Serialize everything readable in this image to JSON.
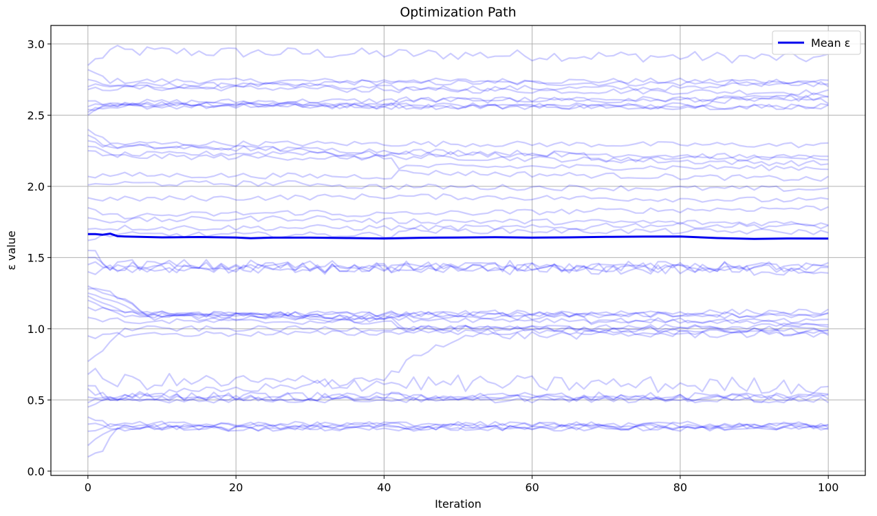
{
  "chart_data": {
    "type": "line",
    "title": "Optimization Path",
    "xlabel": "Iteration",
    "ylabel": "ε value",
    "xlim": [
      -5,
      105
    ],
    "ylim": [
      -0.03,
      3.13
    ],
    "xticks": [
      0,
      20,
      40,
      60,
      80,
      100
    ],
    "yticks": [
      0.0,
      0.5,
      1.0,
      1.5,
      2.0,
      2.5,
      3.0
    ],
    "grid": true,
    "legend": {
      "position": "top-right",
      "entries": [
        "Mean ε"
      ]
    },
    "colors": {
      "trajectory": "#0000ff",
      "mean": "#0000ee",
      "grid": "#b0b0b0"
    },
    "trajectory_opacity": 0.2,
    "trajectory_noise": 0.02,
    "trajectories": [
      {
        "start": 2.85,
        "pts": [
          [
            0,
            2.85
          ],
          [
            3,
            2.95
          ],
          [
            100,
            2.9
          ]
        ],
        "noise": 0.04
      },
      {
        "start": 2.82,
        "pts": [
          [
            0,
            2.82
          ],
          [
            3,
            2.74
          ],
          [
            100,
            2.74
          ]
        ]
      },
      {
        "start": 2.75,
        "pts": [
          [
            0,
            2.75
          ],
          [
            3,
            2.71
          ],
          [
            30,
            2.71
          ],
          [
            33,
            2.73
          ],
          [
            100,
            2.72
          ]
        ]
      },
      {
        "start": 2.7,
        "pts": [
          [
            0,
            2.7
          ],
          [
            3,
            2.7
          ],
          [
            32,
            2.71
          ],
          [
            33,
            2.68
          ],
          [
            100,
            2.66
          ]
        ]
      },
      {
        "start": 2.68,
        "pts": [
          [
            0,
            2.68
          ],
          [
            3,
            2.69
          ],
          [
            85,
            2.69
          ],
          [
            86,
            2.73
          ],
          [
            100,
            2.72
          ]
        ]
      },
      {
        "start": 2.6,
        "pts": [
          [
            0,
            2.6
          ],
          [
            3,
            2.59
          ],
          [
            100,
            2.62
          ]
        ]
      },
      {
        "start": 2.56,
        "pts": [
          [
            0,
            2.56
          ],
          [
            3,
            2.57
          ],
          [
            41,
            2.58
          ],
          [
            42,
            2.61
          ],
          [
            100,
            2.6
          ]
        ]
      },
      {
        "start": 2.54,
        "pts": [
          [
            0,
            2.54
          ],
          [
            3,
            2.58
          ],
          [
            32,
            2.58
          ],
          [
            33,
            2.56
          ],
          [
            100,
            2.56
          ]
        ]
      },
      {
        "start": 2.52,
        "pts": [
          [
            0,
            2.52
          ],
          [
            3,
            2.57
          ],
          [
            100,
            2.56
          ]
        ]
      },
      {
        "start": 2.5,
        "pts": [
          [
            0,
            2.5
          ],
          [
            3,
            2.56
          ],
          [
            84,
            2.57
          ],
          [
            85,
            2.62
          ],
          [
            100,
            2.64
          ]
        ]
      },
      {
        "start": 2.4,
        "pts": [
          [
            0,
            2.4
          ],
          [
            3,
            2.3
          ],
          [
            33,
            2.3
          ],
          [
            40,
            2.3
          ],
          [
            100,
            2.29
          ]
        ]
      },
      {
        "start": 2.36,
        "pts": [
          [
            0,
            2.36
          ],
          [
            3,
            2.28
          ],
          [
            20,
            2.27
          ],
          [
            32,
            2.25
          ],
          [
            33,
            2.21
          ],
          [
            41,
            2.21
          ],
          [
            100,
            2.16
          ]
        ]
      },
      {
        "start": 2.32,
        "pts": [
          [
            0,
            2.32
          ],
          [
            3,
            2.28
          ],
          [
            100,
            2.2
          ]
        ]
      },
      {
        "start": 2.28,
        "pts": [
          [
            0,
            2.28
          ],
          [
            3,
            2.22
          ],
          [
            32,
            2.24
          ],
          [
            33,
            2.23
          ],
          [
            67,
            2.22
          ],
          [
            68,
            2.19
          ],
          [
            100,
            2.2
          ]
        ]
      },
      {
        "start": 2.25,
        "pts": [
          [
            0,
            2.25
          ],
          [
            3,
            2.21
          ],
          [
            41,
            2.2
          ],
          [
            42,
            2.14
          ],
          [
            100,
            2.13
          ]
        ]
      },
      {
        "start": 2.07,
        "pts": [
          [
            0,
            2.07
          ],
          [
            3,
            2.08
          ],
          [
            41,
            2.07
          ],
          [
            42,
            2.1
          ],
          [
            100,
            2.05
          ]
        ]
      },
      {
        "start": 2.01,
        "pts": [
          [
            0,
            2.01
          ],
          [
            3,
            2.02
          ],
          [
            33,
            2.02
          ],
          [
            34,
            2.0
          ],
          [
            100,
            1.98
          ]
        ]
      },
      {
        "start": 1.92,
        "pts": [
          [
            0,
            1.92
          ],
          [
            3,
            1.91
          ],
          [
            41,
            1.93
          ],
          [
            42,
            1.93
          ],
          [
            100,
            1.9
          ]
        ]
      },
      {
        "start": 1.85,
        "pts": [
          [
            0,
            1.85
          ],
          [
            3,
            1.79
          ],
          [
            32,
            1.82
          ],
          [
            33,
            1.8
          ],
          [
            100,
            1.85
          ]
        ]
      },
      {
        "start": 1.78,
        "pts": [
          [
            0,
            1.78
          ],
          [
            3,
            1.76
          ],
          [
            33,
            1.78
          ],
          [
            34,
            1.76
          ],
          [
            100,
            1.74
          ]
        ]
      },
      {
        "start": 1.7,
        "pts": [
          [
            0,
            1.7
          ],
          [
            3,
            1.71
          ],
          [
            68,
            1.71
          ],
          [
            69,
            1.73
          ],
          [
            100,
            1.72
          ]
        ]
      },
      {
        "start": 1.62,
        "pts": [
          [
            0,
            1.62
          ],
          [
            3,
            1.66
          ],
          [
            41,
            1.66
          ],
          [
            42,
            1.69
          ],
          [
            100,
            1.68
          ]
        ]
      },
      {
        "start": 1.55,
        "pts": [
          [
            0,
            1.55
          ],
          [
            3,
            1.45
          ],
          [
            100,
            1.43
          ]
        ],
        "noise": 0.04
      },
      {
        "start": 1.5,
        "pts": [
          [
            0,
            1.5
          ],
          [
            3,
            1.42
          ],
          [
            100,
            1.44
          ]
        ],
        "noise": 0.03
      },
      {
        "start": 1.45,
        "pts": [
          [
            0,
            1.45
          ],
          [
            3,
            1.43
          ],
          [
            100,
            1.41
          ]
        ],
        "noise": 0.04
      },
      {
        "start": 1.4,
        "pts": [
          [
            0,
            1.4
          ],
          [
            3,
            1.42
          ],
          [
            100,
            1.42
          ]
        ],
        "noise": 0.03
      },
      {
        "start": 1.3,
        "pts": [
          [
            0,
            1.3
          ],
          [
            5,
            1.2
          ],
          [
            8,
            1.1
          ],
          [
            100,
            1.12
          ]
        ]
      },
      {
        "start": 1.28,
        "pts": [
          [
            0,
            1.28
          ],
          [
            5,
            1.22
          ],
          [
            8,
            1.08
          ],
          [
            41,
            1.06
          ],
          [
            42,
            1.1
          ],
          [
            100,
            1.09
          ]
        ]
      },
      {
        "start": 1.25,
        "pts": [
          [
            0,
            1.25
          ],
          [
            5,
            1.16
          ],
          [
            8,
            1.11
          ],
          [
            33,
            1.09
          ],
          [
            34,
            1.07
          ],
          [
            100,
            1.05
          ]
        ]
      },
      {
        "start": 1.23,
        "pts": [
          [
            0,
            1.23
          ],
          [
            5,
            1.12
          ],
          [
            8,
            1.09
          ],
          [
            67,
            1.08
          ],
          [
            68,
            1.05
          ],
          [
            100,
            1.04
          ]
        ]
      },
      {
        "start": 1.2,
        "pts": [
          [
            0,
            1.2
          ],
          [
            5,
            1.1
          ],
          [
            8,
            1.1
          ],
          [
            41,
            1.08
          ],
          [
            42,
            1.01
          ],
          [
            100,
            0.98
          ]
        ]
      },
      {
        "start": 1.15,
        "pts": [
          [
            0,
            1.15
          ],
          [
            5,
            1.1
          ],
          [
            100,
            1.1
          ]
        ]
      },
      {
        "start": 1.08,
        "pts": [
          [
            0,
            1.08
          ],
          [
            5,
            1.05
          ],
          [
            41,
            1.05
          ],
          [
            42,
            1.0
          ],
          [
            100,
            1.02
          ]
        ]
      },
      {
        "start": 0.95,
        "pts": [
          [
            0,
            0.95
          ],
          [
            5,
            0.96
          ],
          [
            41,
            0.97
          ],
          [
            42,
            0.98
          ],
          [
            100,
            0.97
          ]
        ]
      },
      {
        "start": 0.77,
        "pts": [
          [
            0,
            0.77
          ],
          [
            3,
            0.9
          ],
          [
            5,
            1.0
          ],
          [
            100,
            1.0
          ]
        ]
      },
      {
        "start": 0.58,
        "pts": [
          [
            0,
            0.58
          ],
          [
            3,
            0.52
          ],
          [
            40,
            0.64
          ],
          [
            44,
            0.8
          ],
          [
            50,
            0.95
          ],
          [
            100,
            0.97
          ]
        ],
        "noise": 0.03
      },
      {
        "start": 0.68,
        "pts": [
          [
            0,
            0.68
          ],
          [
            3,
            0.63
          ],
          [
            100,
            0.6
          ]
        ],
        "noise": 0.06
      },
      {
        "start": 0.6,
        "pts": [
          [
            0,
            0.6
          ],
          [
            3,
            0.52
          ],
          [
            100,
            0.53
          ]
        ],
        "noise": 0.03
      },
      {
        "start": 0.52,
        "pts": [
          [
            0,
            0.52
          ],
          [
            3,
            0.51
          ],
          [
            100,
            0.52
          ]
        ],
        "noise": 0.02
      },
      {
        "start": 0.48,
        "pts": [
          [
            0,
            0.48
          ],
          [
            3,
            0.53
          ],
          [
            100,
            0.51
          ]
        ],
        "noise": 0.03
      },
      {
        "start": 0.45,
        "pts": [
          [
            0,
            0.45
          ],
          [
            3,
            0.5
          ],
          [
            100,
            0.5
          ]
        ],
        "noise": 0.02
      },
      {
        "start": 0.38,
        "pts": [
          [
            0,
            0.38
          ],
          [
            3,
            0.33
          ],
          [
            100,
            0.32
          ]
        ],
        "noise": 0.02
      },
      {
        "start": 0.33,
        "pts": [
          [
            0,
            0.33
          ],
          [
            3,
            0.31
          ],
          [
            100,
            0.31
          ]
        ],
        "noise": 0.02
      },
      {
        "start": 0.28,
        "pts": [
          [
            0,
            0.28
          ],
          [
            3,
            0.33
          ],
          [
            100,
            0.33
          ]
        ],
        "noise": 0.02
      },
      {
        "start": 0.18,
        "pts": [
          [
            0,
            0.18
          ],
          [
            3,
            0.3
          ],
          [
            100,
            0.3
          ]
        ],
        "noise": 0.02
      },
      {
        "start": 0.1,
        "pts": [
          [
            0,
            0.1
          ],
          [
            2,
            0.14
          ],
          [
            4,
            0.3
          ],
          [
            100,
            0.31
          ]
        ],
        "noise": 0.02
      }
    ],
    "mean_series": {
      "name": "Mean ε",
      "x": [
        0,
        1,
        2,
        3,
        4,
        5,
        10,
        15,
        20,
        22,
        25,
        30,
        35,
        40,
        45,
        50,
        55,
        60,
        65,
        70,
        75,
        80,
        85,
        90,
        95,
        100
      ],
      "y": [
        1.665,
        1.665,
        1.66,
        1.668,
        1.65,
        1.648,
        1.642,
        1.644,
        1.641,
        1.636,
        1.64,
        1.64,
        1.637,
        1.634,
        1.639,
        1.641,
        1.643,
        1.64,
        1.642,
        1.645,
        1.647,
        1.648,
        1.637,
        1.631,
        1.634,
        1.633
      ]
    }
  }
}
